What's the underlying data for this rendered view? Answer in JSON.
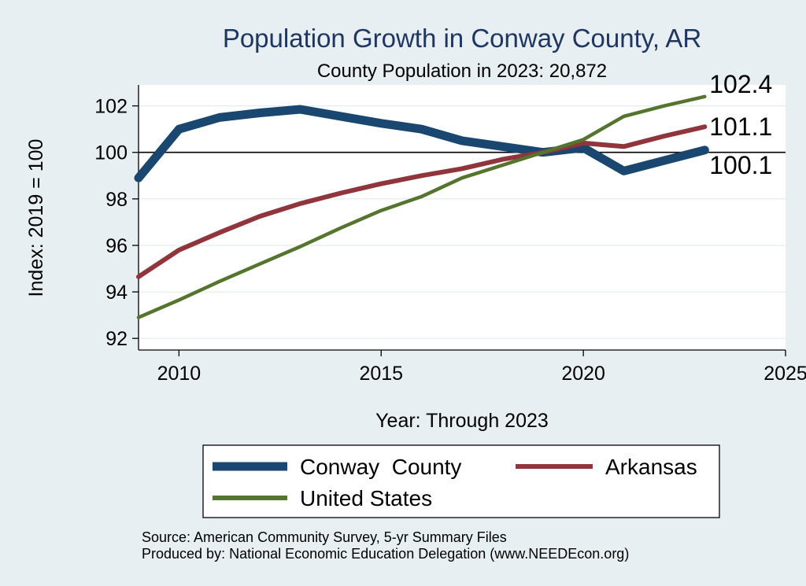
{
  "chart_data": {
    "type": "line",
    "title": "Population Growth in Conway County, AR",
    "subtitle": "County Population in 2023: 20,872",
    "xlabel": "Year: Through 2023",
    "ylabel": "Index: 2019 = 100",
    "xlim": [
      2009,
      2025
    ],
    "ylim": [
      91.5,
      102.9
    ],
    "xticks": [
      2010,
      2015,
      2020,
      2025
    ],
    "yticks": [
      92,
      94,
      96,
      98,
      100,
      102
    ],
    "reference_line": 100,
    "grid": true,
    "legend_position": "bottom",
    "x": [
      2009,
      2010,
      2011,
      2012,
      2013,
      2014,
      2015,
      2016,
      2017,
      2018,
      2019,
      2020,
      2021,
      2022,
      2023
    ],
    "series": [
      {
        "name": "Conway  County",
        "color": "#1a476f",
        "values": [
          98.9,
          101.0,
          101.5,
          101.7,
          101.85,
          101.55,
          101.25,
          101.0,
          100.5,
          100.25,
          100.0,
          100.2,
          99.2,
          99.65,
          100.1
        ],
        "end_label": "100.1"
      },
      {
        "name": "Arkansas",
        "color": "#90353b",
        "values": [
          94.65,
          95.8,
          96.55,
          97.25,
          97.8,
          98.25,
          98.65,
          99.0,
          99.3,
          99.7,
          100.0,
          100.4,
          100.25,
          100.7,
          101.1
        ],
        "end_label": "101.1"
      },
      {
        "name": "United States",
        "color": "#55752f",
        "values": [
          92.9,
          93.65,
          94.45,
          95.2,
          95.95,
          96.75,
          97.5,
          98.1,
          98.9,
          99.45,
          100.0,
          100.55,
          101.55,
          102.0,
          102.4
        ],
        "end_label": "102.4"
      }
    ],
    "source": "Source: American Community Survey, 5-yr Summary Files",
    "producer": "Produced by: National Economic Education Delegation (www.NEEDEcon.org)"
  }
}
